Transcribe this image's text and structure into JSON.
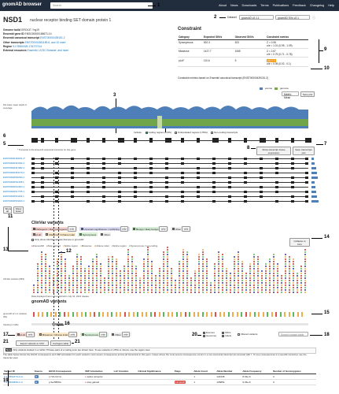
{
  "app": {
    "logo": "gnomAD browser",
    "search_placeholder": "Search",
    "nav": [
      "About",
      "News",
      "Downloads",
      "Terms",
      "Publications",
      "Feedback",
      "Changelog",
      "Help"
    ]
  },
  "gene": {
    "symbol": "NSD1",
    "name": "nuclear receptor binding SET domain protein 1"
  },
  "dataset": {
    "label": "Dataset",
    "value": "gnomAD v2.1.1",
    "subset": "gnomAD SVs v2.1"
  },
  "meta": [
    {
      "k": "Genome build",
      "v": "GRCh37 / hg19"
    },
    {
      "k": "Ensembl gene ID",
      "v": "ENSG00000165671.14"
    },
    {
      "k": "Ensembl canonical transcript",
      "v": "ENST00000439151.2"
    },
    {
      "k": "Other transcripts",
      "v": "ENST00000361189.6, and 10 more"
    },
    {
      "k": "Region",
      "v": "5:176560026-176727214"
    },
    {
      "k": "External resources",
      "v": "Ensembl, UCSC Browser, and more"
    }
  ],
  "constraint": {
    "title": "Constraint",
    "headers": [
      "Category",
      "Expected SNVs",
      "Observed SNVs",
      "Constraint metrics"
    ],
    "rows": [
      {
        "cat": "Synonymous",
        "exp": "520.3",
        "obs": "523",
        "m1": "Z = 0.08",
        "m2": "o/e = 1.01 (0.95 - 1.09)"
      },
      {
        "cat": "Missense",
        "exp": "1427.7",
        "obs": "1065",
        "m1": "Z = 2.67",
        "m2": "o/e = 0.75 (0.71 - 0.78)"
      },
      {
        "cat": "pLoF",
        "exp": "110.6",
        "obs": "5",
        "m1": "pLI = 1",
        "m2": "o/e = 0.05 (0.02 - 0.1)"
      }
    ],
    "note": "Constraint metrics based on Ensembl canonical transcript (ENST00000439151.2)"
  },
  "coverage": {
    "legend": [
      "exome",
      "genome",
      "Metric: Mean"
    ],
    "save": "Save plot",
    "ylabel": "Per-base mean depth of coverage",
    "options": [
      "Include:",
      "Coding regions (CDS)",
      "Untranslated regions (UTRs)",
      "Non-coding transcripts"
    ]
  },
  "transcripts": {
    "note": "* Transcript is the Ensembl canonical transcript for this gene",
    "ids": [
      "ENST00000439151.2*",
      "ENST00000361032.4",
      "ENST00000347982.4",
      "ENST00000354179.4",
      "ENST00000520394.1",
      "ENST00000511258.1",
      "ENST00000512604.1",
      "ENST00000517755.1",
      "ENST00000521190.1",
      "ENST00000519643.1"
    ],
    "show_expr": "Show transcript tissue expression",
    "save_tracks": "Save transcripts plot"
  },
  "buttons": {
    "show_all": "Show all",
    "show_fewer": "Show fewer"
  },
  "clinvar": {
    "title": "ClinVar variants",
    "filters": [
      "Pathogenic / likely pathogenic",
      "Uncertain significance / conflicting",
      "Benign / likely benign",
      "Other"
    ],
    "only": "only",
    "types": [
      "pLoF",
      "Missense / Inframe indel",
      "Synonymous",
      "Other"
    ],
    "star_note": "Only show ClinVar variants that are in gnomAD",
    "collapse": "Collapse to bins",
    "track_label": "ClinVar variants (849)",
    "legend": [
      "Frameshift",
      "Stop gained",
      "Splice region",
      "Missense",
      "Inframe indel",
      "Splice region",
      "Synonymous / non-coding"
    ],
    "footer": "Data displayed here is from ClinVar's July 31, 2021 release"
  },
  "gnomad": {
    "title": "gnomAD variants",
    "track_label": "gnomAD v2.1.1 variants (63)",
    "viewing": "Viewing in table",
    "filters": [
      "pLoF",
      "Missense / Inframe indel",
      "Synonymous",
      "Other"
    ],
    "sources": [
      "Exomes",
      "Genomes"
    ],
    "types": [
      "SNVs",
      "Indels"
    ],
    "filtered": "Filtered variants",
    "search_placeholder": "Search variant table",
    "export": "Export variants to CSV",
    "configure": "Configure table",
    "note": "Only variants located in or within 75 base pairs of a coding exon are shown here. To see variants in UTRs or introns, use the region view.",
    "note2": "The table below shows the HGVS consequence and VEP annotation for each variant's most severe consequence across all transcripts in this gene. Cases where the most severe consequence occurs in a non-canonical transcript are denoted with †. To see consequences in a specific transcript, use the transcript view.",
    "headers": [
      "Variant ID",
      "Source",
      "HGVS Consequence",
      "VEP Annotation",
      "LoF Curation",
      "Clinical Significance",
      "Flags",
      "Allele Count",
      "Allele Number",
      "Allele Frequency",
      "Number of Homozygotes"
    ],
    "rows": [
      {
        "id": "5-176562473-A-G",
        "src": "E",
        "hgvs": "c.721-2A>G",
        "vep": "splice acceptor",
        "lof": "",
        "clin": "",
        "flags": "",
        "ac": "1",
        "an": "124438",
        "af": "8.04e-6",
        "hom": "0"
      },
      {
        "id": "5-176563839-C-A",
        "src": "E",
        "hgvs": "p.Ser585Ter",
        "vep": "stop gained",
        "lof": "",
        "clin": "",
        "flags": "LC pLoF",
        "ac": "1",
        "an": "105854",
        "af": "9.45e-6",
        "hom": "0"
      }
    ]
  },
  "markers": [
    "1",
    "2",
    "3",
    "4",
    "5",
    "6",
    "7",
    "8",
    "9",
    "10",
    "11",
    "12",
    "13",
    "14",
    "15",
    "16",
    "17",
    "18",
    "19",
    "20",
    "21"
  ],
  "colors": {
    "exome": "#4f7fb8",
    "genome": "#73ab3d",
    "topbar": "#212c3d",
    "pathogenic": "#c23a2b",
    "benign": "#3c8d3c",
    "uncertain": "#3a3a9a",
    "plof": "#d9534f",
    "missense": "#f0ad4e",
    "synonymous": "#5cb85c"
  }
}
